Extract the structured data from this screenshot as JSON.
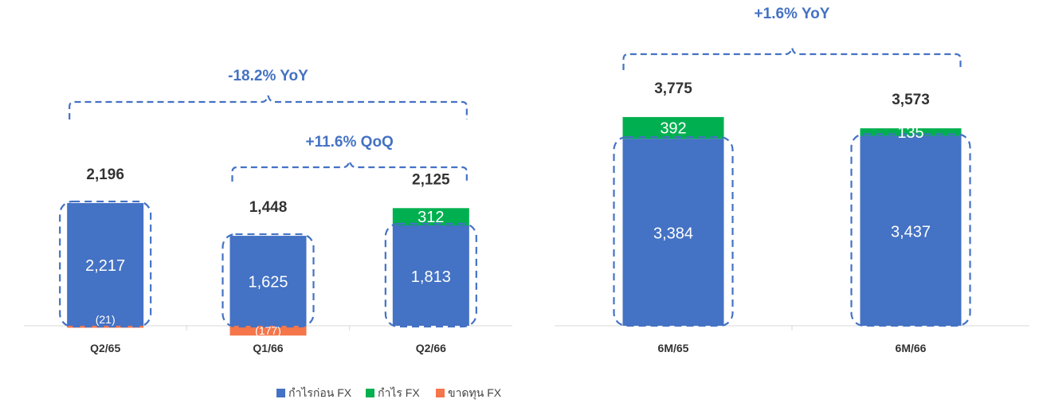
{
  "colors": {
    "pre_fx": "#4472C4",
    "fx_gain": "#00B050",
    "fx_loss": "#F4764A",
    "change_text": "#4472C4",
    "bracket": "#4472C4",
    "axis": "#D9D9D9"
  },
  "legend": {
    "items": [
      {
        "key": "pre_fx",
        "label": "กำไรก่อน FX"
      },
      {
        "key": "fx_gain",
        "label": "กำไร FX"
      },
      {
        "key": "fx_loss",
        "label": "ขาดทุน FX"
      }
    ],
    "placement": "bottom-right"
  },
  "chart_data": [
    {
      "type": "bar",
      "stacked": true,
      "categories": [
        "Q2/65",
        "Q1/66",
        "Q2/66"
      ],
      "series": [
        {
          "name": "กำไรก่อน FX",
          "key": "pre_fx",
          "values": [
            2217,
            1625,
            1813
          ],
          "labels": [
            "2,217",
            "1,625",
            "1,813"
          ]
        },
        {
          "name": "กำไร FX",
          "key": "fx_gain",
          "values": [
            0,
            0,
            312
          ],
          "labels": [
            "",
            "",
            "312"
          ]
        },
        {
          "name": "ขาดทุน FX",
          "key": "fx_loss",
          "values": [
            -21,
            -177,
            0
          ],
          "labels": [
            "(21)",
            "(177)",
            ""
          ]
        }
      ],
      "totals": [
        "2,196",
        "1,448",
        "2,125"
      ],
      "changes": [
        {
          "text": "-18.2% YoY",
          "from": 0,
          "to": 2
        },
        {
          "text": "+11.6% QoQ",
          "from": 1,
          "to": 2
        }
      ],
      "ylim": [
        -200,
        2650
      ],
      "grid": false
    },
    {
      "type": "bar",
      "stacked": true,
      "categories": [
        "6M/65",
        "6M/66"
      ],
      "series": [
        {
          "name": "กำไรก่อน FX",
          "key": "pre_fx",
          "values": [
            3384,
            3437
          ],
          "labels": [
            "3,384",
            "3,437"
          ]
        },
        {
          "name": "กำไร FX",
          "key": "fx_gain",
          "values": [
            392,
            135
          ],
          "labels": [
            "392",
            "135"
          ]
        }
      ],
      "totals": [
        "3,775",
        "3,573"
      ],
      "changes": [
        {
          "text": "+1.6% YoY",
          "from": 0,
          "to": 1
        }
      ],
      "ylim": [
        0,
        4180
      ],
      "grid": false
    }
  ]
}
